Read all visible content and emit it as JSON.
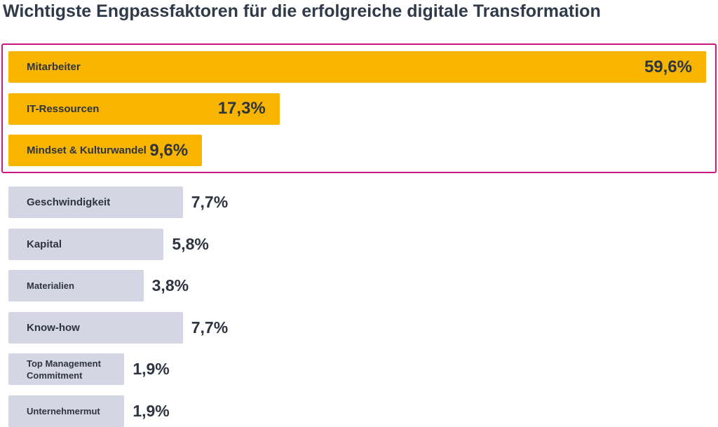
{
  "chart_data": {
    "type": "bar",
    "orientation": "horizontal",
    "title": "Wichtigste Engpassfaktoren für die erfolgreiche digitale Transformation",
    "categories": [
      "Mitarbeiter",
      "IT-Ressourcen",
      "Mindset & Kulturwandel",
      "Geschwindigkeit",
      "Kapital",
      "Materialien",
      "Know-how",
      "Top Management Commitment",
      "Unternehmermut"
    ],
    "values": [
      59.6,
      17.3,
      9.6,
      7.7,
      5.8,
      3.8,
      7.7,
      1.9,
      1.9
    ],
    "value_labels": [
      "59,6%",
      "17,3%",
      "9,6%",
      "7,7%",
      "5,8%",
      "3,8%",
      "7,7%",
      "1,9%",
      "1,9%"
    ],
    "colors": [
      "#f7b500",
      "#f7b500",
      "#f7b500",
      "#d4d7e3",
      "#d4d7e3",
      "#d4d7e3",
      "#d4d7e3",
      "#d4d7e3",
      "#d4d7e3"
    ],
    "highlight_color": "#f7b500",
    "highlight_border_color": "#c8177f"
  }
}
